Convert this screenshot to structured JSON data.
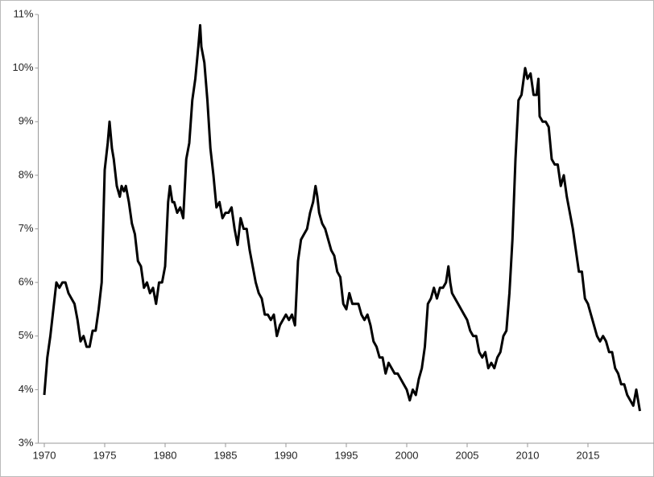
{
  "chart_data": {
    "type": "line",
    "color": "#000000",
    "xlim": [
      1969.5,
      2019.8
    ],
    "xticks": [
      1970,
      1975,
      1980,
      1985,
      1990,
      1995,
      2000,
      2005,
      2010,
      2015
    ],
    "ylim": [
      3,
      11
    ],
    "yticks": [
      {
        "value": 3,
        "label": "3%"
      },
      {
        "value": 4,
        "label": "4%"
      },
      {
        "value": 5,
        "label": "5%"
      },
      {
        "value": 6,
        "label": "6%"
      },
      {
        "value": 7,
        "label": "7%"
      },
      {
        "value": 8,
        "label": "8%"
      },
      {
        "value": 9,
        "label": "9%"
      },
      {
        "value": 10,
        "label": "10%"
      },
      {
        "value": 11,
        "label": "11%"
      }
    ],
    "x": [
      1970.0,
      1970.25,
      1970.5,
      1970.75,
      1971.0,
      1971.25,
      1971.5,
      1971.75,
      1972.0,
      1972.25,
      1972.5,
      1972.75,
      1973.0,
      1973.25,
      1973.5,
      1973.75,
      1974.0,
      1974.25,
      1974.5,
      1974.75,
      1975.0,
      1975.25,
      1975.4,
      1975.6,
      1975.75,
      1976.0,
      1976.25,
      1976.4,
      1976.6,
      1976.75,
      1977.0,
      1977.25,
      1977.5,
      1977.75,
      1978.0,
      1978.25,
      1978.5,
      1978.75,
      1979.0,
      1979.25,
      1979.5,
      1979.75,
      1980.0,
      1980.25,
      1980.4,
      1980.6,
      1980.75,
      1981.0,
      1981.25,
      1981.5,
      1981.75,
      1982.0,
      1982.25,
      1982.5,
      1982.75,
      1982.9,
      1983.0,
      1983.25,
      1983.5,
      1983.75,
      1984.0,
      1984.25,
      1984.5,
      1984.75,
      1985.0,
      1985.25,
      1985.5,
      1985.75,
      1986.0,
      1986.25,
      1986.5,
      1986.75,
      1987.0,
      1987.25,
      1987.5,
      1987.75,
      1988.0,
      1988.25,
      1988.5,
      1988.75,
      1989.0,
      1989.25,
      1989.5,
      1989.75,
      1990.0,
      1990.25,
      1990.5,
      1990.75,
      1991.0,
      1991.25,
      1991.5,
      1991.75,
      1992.0,
      1992.25,
      1992.45,
      1992.6,
      1992.75,
      1993.0,
      1993.25,
      1993.5,
      1993.75,
      1994.0,
      1994.25,
      1994.5,
      1994.75,
      1995.0,
      1995.25,
      1995.5,
      1995.75,
      1996.0,
      1996.25,
      1996.5,
      1996.75,
      1997.0,
      1997.25,
      1997.5,
      1997.75,
      1998.0,
      1998.25,
      1998.5,
      1998.75,
      1999.0,
      1999.25,
      1999.5,
      1999.75,
      2000.0,
      2000.25,
      2000.5,
      2000.75,
      2001.0,
      2001.25,
      2001.5,
      2001.75,
      2002.0,
      2002.25,
      2002.5,
      2002.75,
      2003.0,
      2003.25,
      2003.45,
      2003.6,
      2003.75,
      2004.0,
      2004.25,
      2004.5,
      2004.75,
      2005.0,
      2005.25,
      2005.5,
      2005.75,
      2006.0,
      2006.25,
      2006.5,
      2006.75,
      2007.0,
      2007.25,
      2007.5,
      2007.75,
      2008.0,
      2008.25,
      2008.5,
      2008.75,
      2009.0,
      2009.25,
      2009.5,
      2009.8,
      2010.0,
      2010.25,
      2010.5,
      2010.75,
      2010.9,
      2011.0,
      2011.25,
      2011.5,
      2011.75,
      2012.0,
      2012.25,
      2012.5,
      2012.75,
      2013.0,
      2013.25,
      2013.5,
      2013.75,
      2014.0,
      2014.25,
      2014.5,
      2014.75,
      2015.0,
      2015.25,
      2015.5,
      2015.75,
      2016.0,
      2016.25,
      2016.5,
      2016.75,
      2017.0,
      2017.25,
      2017.5,
      2017.75,
      2018.0,
      2018.25,
      2018.5,
      2018.75,
      2019.0,
      2019.15,
      2019.3
    ],
    "values": [
      3.9,
      4.6,
      5.0,
      5.5,
      6.0,
      5.9,
      6.0,
      6.0,
      5.8,
      5.7,
      5.6,
      5.3,
      4.9,
      5.0,
      4.8,
      4.8,
      5.1,
      5.1,
      5.5,
      6.0,
      8.1,
      8.6,
      9.0,
      8.5,
      8.3,
      7.8,
      7.6,
      7.8,
      7.7,
      7.8,
      7.5,
      7.1,
      6.9,
      6.4,
      6.3,
      5.9,
      6.0,
      5.8,
      5.9,
      5.6,
      6.0,
      6.0,
      6.3,
      7.5,
      7.8,
      7.5,
      7.5,
      7.3,
      7.4,
      7.2,
      8.3,
      8.6,
      9.4,
      9.8,
      10.4,
      10.8,
      10.4,
      10.1,
      9.4,
      8.5,
      8.0,
      7.4,
      7.5,
      7.2,
      7.3,
      7.3,
      7.4,
      7.0,
      6.7,
      7.2,
      7.0,
      7.0,
      6.6,
      6.3,
      6.0,
      5.8,
      5.7,
      5.4,
      5.4,
      5.3,
      5.4,
      5.0,
      5.2,
      5.3,
      5.4,
      5.3,
      5.4,
      5.2,
      6.4,
      6.8,
      6.9,
      7.0,
      7.3,
      7.5,
      7.8,
      7.6,
      7.3,
      7.1,
      7.0,
      6.8,
      6.6,
      6.5,
      6.2,
      6.1,
      5.6,
      5.5,
      5.8,
      5.6,
      5.6,
      5.6,
      5.4,
      5.3,
      5.4,
      5.2,
      4.9,
      4.8,
      4.6,
      4.6,
      4.3,
      4.5,
      4.4,
      4.3,
      4.3,
      4.2,
      4.1,
      4.0,
      3.8,
      4.0,
      3.9,
      4.2,
      4.4,
      4.8,
      5.6,
      5.7,
      5.9,
      5.7,
      5.9,
      5.9,
      6.0,
      6.3,
      6.0,
      5.8,
      5.7,
      5.6,
      5.5,
      5.4,
      5.3,
      5.1,
      5.0,
      5.0,
      4.7,
      4.6,
      4.7,
      4.4,
      4.5,
      4.4,
      4.6,
      4.7,
      5.0,
      5.1,
      5.8,
      6.8,
      8.3,
      9.4,
      9.5,
      10.0,
      9.8,
      9.9,
      9.5,
      9.5,
      9.8,
      9.1,
      9.0,
      9.0,
      8.9,
      8.3,
      8.2,
      8.2,
      7.8,
      8.0,
      7.6,
      7.3,
      7.0,
      6.6,
      6.2,
      6.2,
      5.7,
      5.6,
      5.4,
      5.2,
      5.0,
      4.9,
      5.0,
      4.9,
      4.7,
      4.7,
      4.4,
      4.3,
      4.1,
      4.1,
      3.9,
      3.8,
      3.7,
      4.0,
      3.8,
      3.6
    ]
  }
}
